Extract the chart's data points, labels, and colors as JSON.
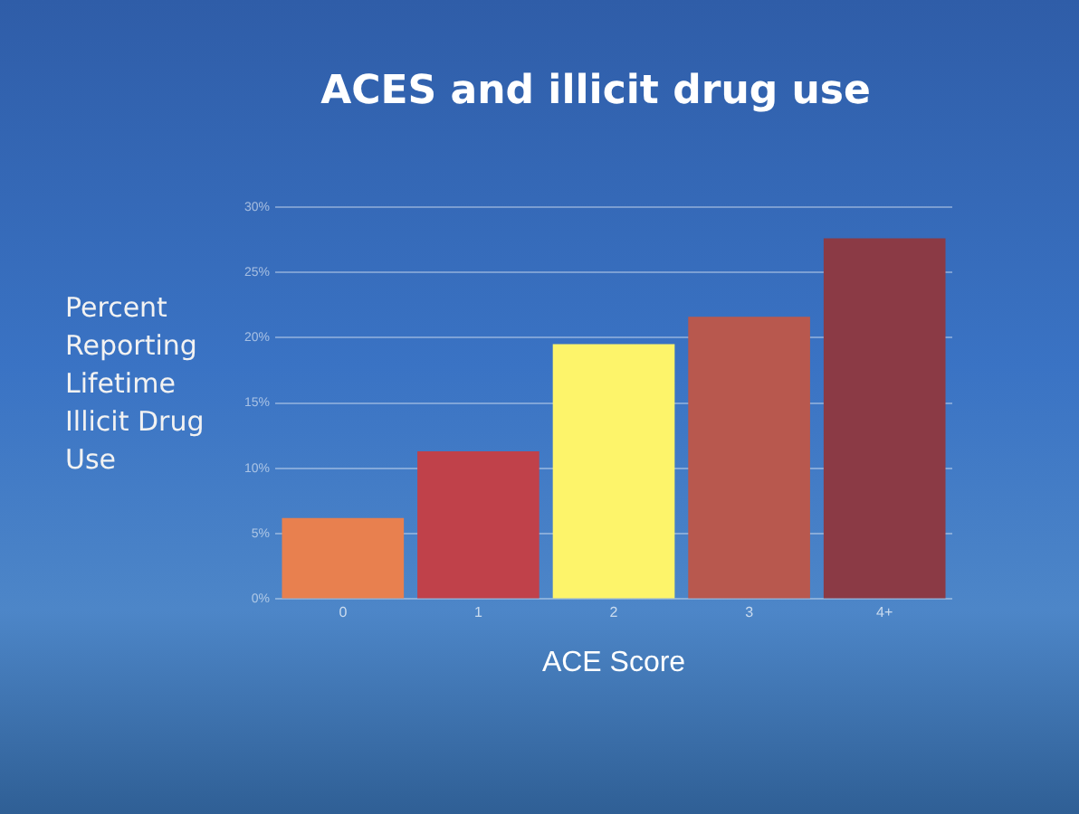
{
  "chart_data": {
    "type": "bar",
    "title": "ACES and illicit drug use",
    "xlabel": "ACE Score",
    "ylabel": "Percent Reporting Lifetime Illicit Drug Use",
    "categories": [
      "0",
      "1",
      "2",
      "3",
      "4+"
    ],
    "values": [
      6.2,
      11.3,
      19.5,
      21.6,
      27.6
    ],
    "colors": [
      "#e8804f",
      "#c0414a",
      "#fdf46a",
      "#b8584e",
      "#8b3a45"
    ],
    "ylim": [
      0,
      30
    ],
    "yticks": [
      {
        "value": 0,
        "label": "0%"
      },
      {
        "value": 5,
        "label": "5%"
      },
      {
        "value": 10,
        "label": "10%"
      },
      {
        "value": 15,
        "label": "15%"
      },
      {
        "value": 20,
        "label": "20%"
      },
      {
        "value": 25,
        "label": "25%"
      },
      {
        "value": 30,
        "label": "30%"
      }
    ],
    "grid": "y"
  }
}
